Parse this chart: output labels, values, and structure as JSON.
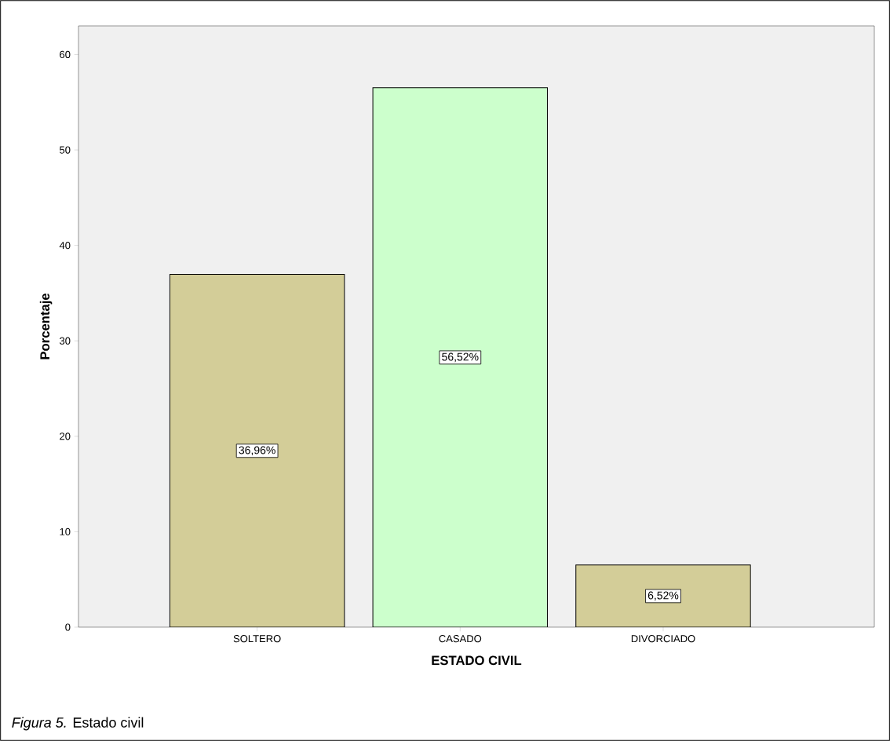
{
  "chart_data": {
    "type": "bar",
    "categories": [
      "SOLTERO",
      "CASADO",
      "DIVORCIADO"
    ],
    "values": [
      36.96,
      56.52,
      6.52
    ],
    "colors": [
      "#d3cd98",
      "#ccffcc",
      "#d3cd98"
    ],
    "value_labels": [
      "36,96%",
      "56,52%",
      "6,52%"
    ],
    "xlabel": "ESTADO CIVIL",
    "ylabel": "Porcentaje",
    "ylim": [
      0,
      63
    ],
    "yticks": [
      0,
      10,
      20,
      30,
      40,
      50,
      60
    ],
    "annotations": [
      "*Figura 5.*  Estado civil"
    ]
  }
}
